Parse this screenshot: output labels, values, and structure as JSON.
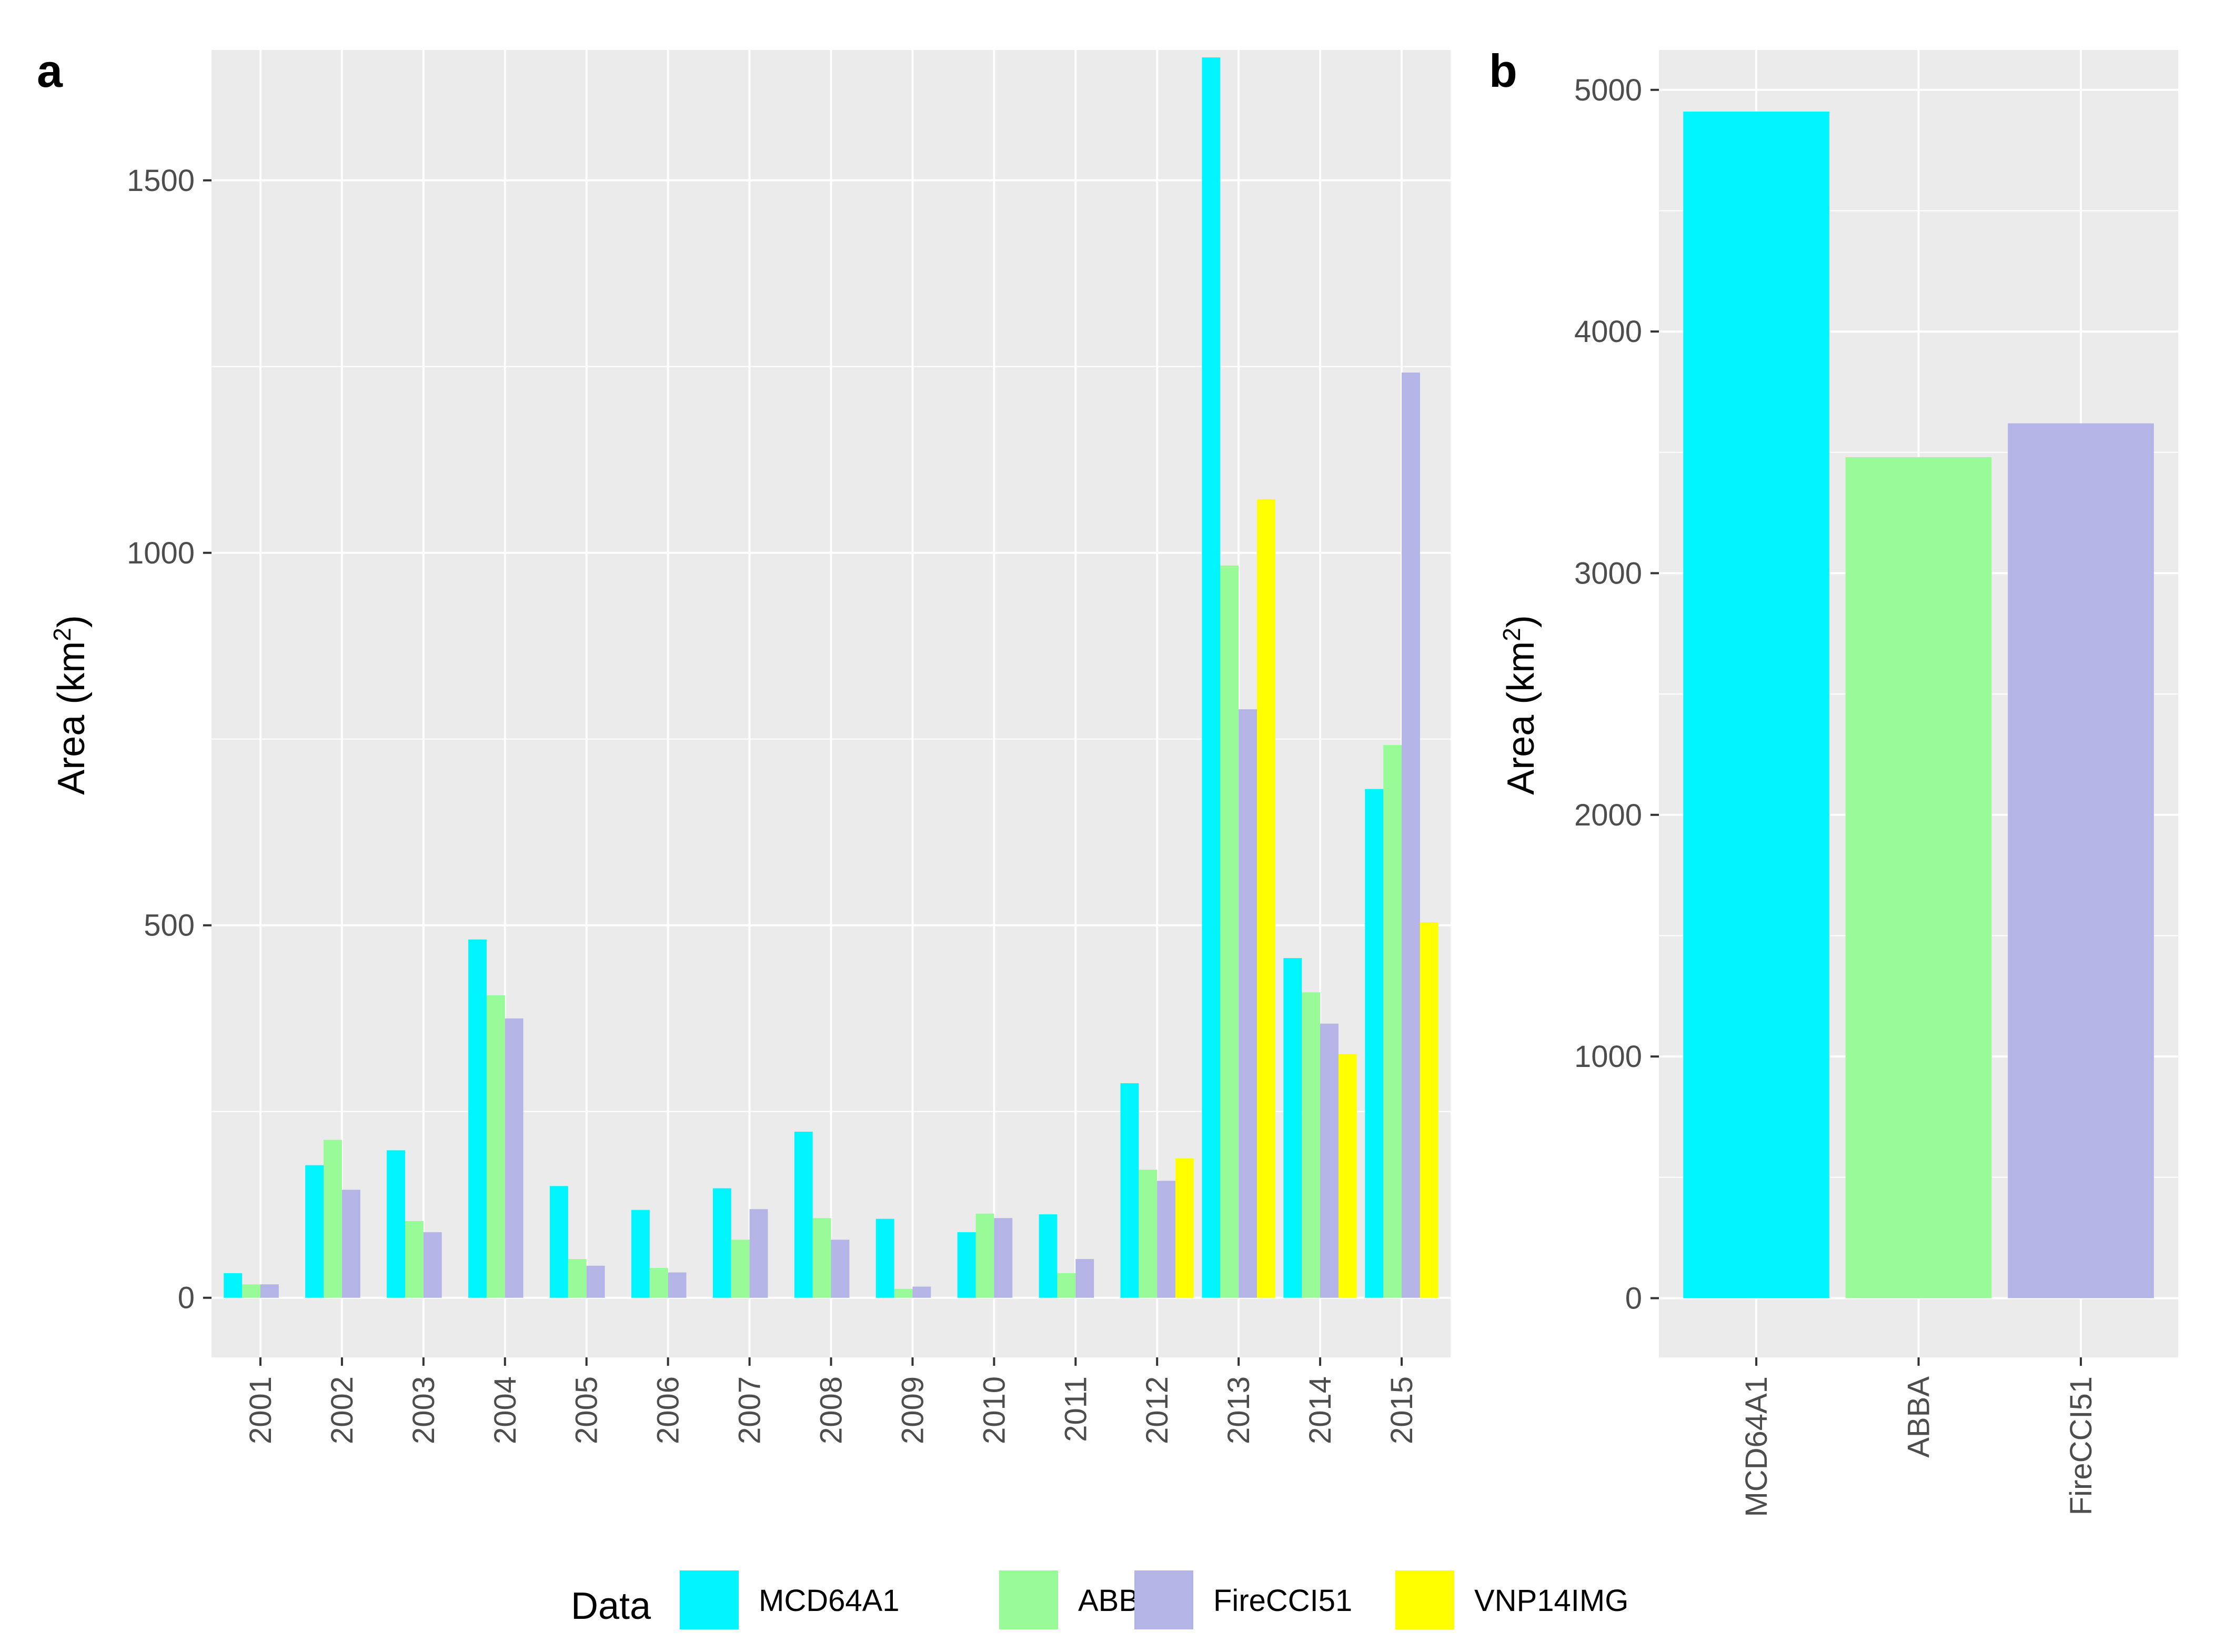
{
  "chart_data": [
    {
      "panel": "a",
      "type": "bar",
      "xlabel": "",
      "ylabel": "Area (km²)",
      "ylabel_base": "Area (km",
      "ylabel_sup": "2",
      "ylabel_close": ")",
      "ylim": [
        -80,
        1675
      ],
      "yticks": [
        0,
        500,
        1000,
        1500
      ],
      "grid": true,
      "categories": [
        "2001",
        "2002",
        "2003",
        "2004",
        "2005",
        "2006",
        "2007",
        "2008",
        "2009",
        "2010",
        "2011",
        "2012",
        "2013",
        "2014",
        "2015"
      ],
      "series": [
        {
          "name": "MCD64A1",
          "color": "#00F5FF",
          "values": [
            33,
            178,
            198,
            481,
            150,
            118,
            147,
            223,
            106,
            88,
            112,
            288,
            1665,
            456,
            683
          ]
        },
        {
          "name": "ABBA",
          "color": "#98FB98",
          "values": [
            18,
            212,
            103,
            406,
            52,
            40,
            78,
            107,
            12,
            113,
            33,
            172,
            983,
            410,
            742
          ]
        },
        {
          "name": "FireCCI51",
          "color": "#B4B4E6",
          "values": [
            18,
            145,
            88,
            375,
            43,
            34,
            119,
            78,
            15,
            107,
            52,
            157,
            790,
            368,
            1242
          ]
        },
        {
          "name": "VNP14IMG",
          "color": "#FFFF00",
          "values": [
            null,
            null,
            null,
            null,
            null,
            null,
            null,
            null,
            null,
            null,
            null,
            187,
            1072,
            327,
            504
          ]
        }
      ]
    },
    {
      "panel": "b",
      "type": "bar",
      "xlabel": "",
      "ylabel": "Area (km²)",
      "ylabel_base": "Area (km",
      "ylabel_sup": "2",
      "ylabel_close": ")",
      "ylim": [
        -245,
        5165
      ],
      "yticks": [
        0,
        1000,
        2000,
        3000,
        4000,
        5000
      ],
      "grid": true,
      "categories": [
        "MCD64A1",
        "ABBA",
        "FireCCI51"
      ],
      "colors": [
        "#00F5FF",
        "#98FB98",
        "#B4B4E6"
      ],
      "values": [
        4910,
        3480,
        3620
      ]
    }
  ],
  "legend": {
    "title": "Data",
    "position": "bottom",
    "items": [
      {
        "label": "MCD64A1",
        "color": "#00F5FF"
      },
      {
        "label": "ABBA",
        "color": "#98FB98"
      },
      {
        "label": "FireCCI51",
        "color": "#B4B4E6"
      },
      {
        "label": "VNP14IMG",
        "color": "#FFFF00"
      }
    ]
  },
  "panel_bg": "#EBEBEB"
}
